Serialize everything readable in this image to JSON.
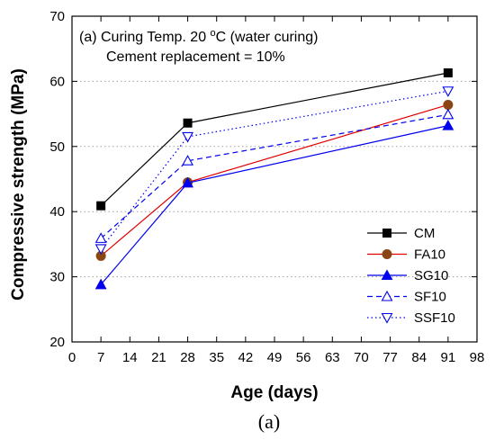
{
  "chart_data": {
    "type": "line",
    "xlabel": "Age (days)",
    "ylabel": "Compressive strength (MPa)",
    "xlim": [
      0,
      98
    ],
    "ylim": [
      20,
      70
    ],
    "xticks": [
      0,
      7,
      14,
      21,
      28,
      35,
      42,
      49,
      56,
      63,
      70,
      77,
      84,
      91,
      98
    ],
    "yticks": [
      20,
      30,
      40,
      50,
      60,
      70
    ],
    "grid": "horizontal-dotted",
    "legend_position": "bottom-right",
    "annotations": [
      "(a) Curing Temp. 20 °C (water curing)",
      "Cement replacement = 10%"
    ],
    "series": [
      {
        "name": "CM",
        "color": "#000000",
        "marker": "filled-square",
        "line": "solid",
        "x": [
          7,
          28,
          91
        ],
        "y": [
          40.9,
          53.6,
          61.3
        ]
      },
      {
        "name": "FA10",
        "color": "#e00000",
        "marker": "filled-circle",
        "marker_color": "#8b4513",
        "line": "solid",
        "x": [
          7,
          28,
          91
        ],
        "y": [
          33.2,
          44.5,
          56.4
        ]
      },
      {
        "name": "SG10",
        "color": "#0000ee",
        "marker": "filled-triangle-up",
        "line": "solid",
        "x": [
          7,
          28,
          91
        ],
        "y": [
          28.8,
          44.4,
          53.2
        ]
      },
      {
        "name": "SF10",
        "color": "#0000ee",
        "marker": "open-triangle-up",
        "line": "dashed",
        "x": [
          7,
          28,
          91
        ],
        "y": [
          35.9,
          47.8,
          54.9
        ]
      },
      {
        "name": "SSF10",
        "color": "#0000ee",
        "marker": "open-triangle-down",
        "line": "dotted",
        "x": [
          7,
          28,
          91
        ],
        "y": [
          34.3,
          51.5,
          58.5
        ]
      }
    ]
  },
  "caption": "(a)"
}
